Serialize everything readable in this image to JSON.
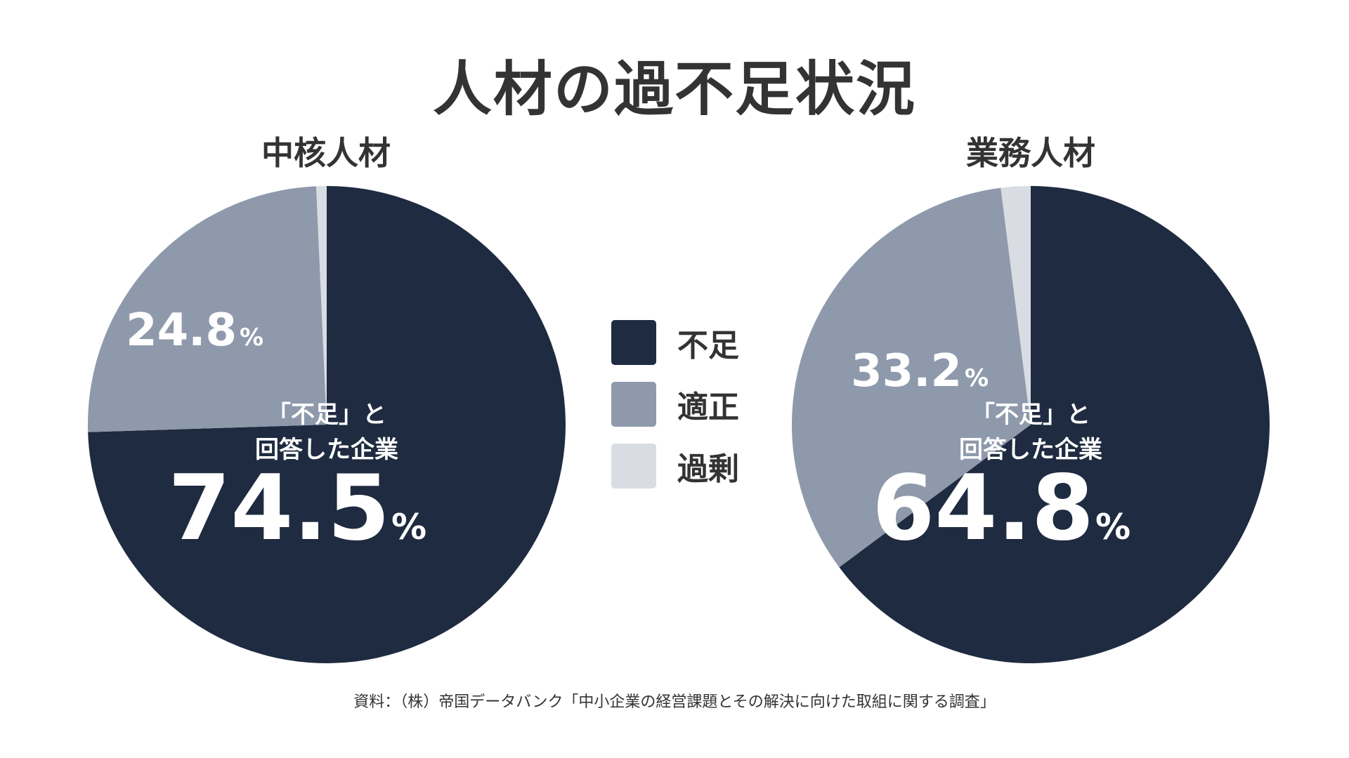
{
  "title": "人材の過不足状況",
  "source": "資料：（株）帝国データバンク「中小企業の経営課題とその解決に向けた取組に関する調査」",
  "colors": {
    "shortage": "#1e2b40",
    "appropriate": "#8e9aab",
    "surplus": "#d9dde3",
    "white": "#ffffff"
  },
  "legend": [
    {
      "label": "不足",
      "color": "#1e2b40"
    },
    {
      "label": "適正",
      "color": "#8e9aab"
    },
    {
      "label": "過剰",
      "color": "#d9dde3"
    }
  ],
  "chart_data": [
    {
      "type": "pie",
      "title": "中核人材",
      "slices": [
        {
          "name": "不足",
          "value": 74.5,
          "color": "#1e2b40"
        },
        {
          "name": "適正",
          "value": 24.8,
          "color": "#8e9aab"
        },
        {
          "name": "過剰",
          "value": 0.7,
          "color": "#d9dde3"
        }
      ],
      "annotation": {
        "line1": "「不足」と",
        "line2": "回答した企業",
        "value": "74.5",
        "unit": "%"
      },
      "label_appropriate": {
        "value": "24.8",
        "unit": "%"
      }
    },
    {
      "type": "pie",
      "title": "業務人材",
      "slices": [
        {
          "name": "不足",
          "value": 64.8,
          "color": "#1e2b40"
        },
        {
          "name": "適正",
          "value": 33.2,
          "color": "#8e9aab"
        },
        {
          "name": "過剰",
          "value": 2.0,
          "color": "#d9dde3"
        }
      ],
      "annotation": {
        "line1": "「不足」と",
        "line2": "回答した企業",
        "value": "64.8",
        "unit": "%"
      },
      "label_appropriate": {
        "value": "33.2",
        "unit": "%"
      }
    }
  ]
}
